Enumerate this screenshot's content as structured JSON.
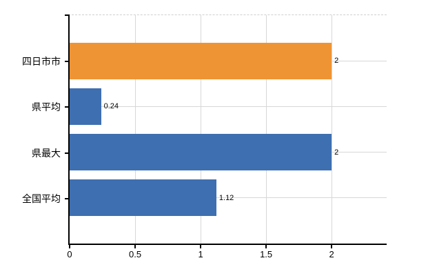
{
  "chart_data": {
    "type": "bar",
    "orientation": "horizontal",
    "title": "",
    "categories": [
      "四日市市",
      "県平均",
      "県最大",
      "全国平均"
    ],
    "values": [
      2,
      0.24,
      2,
      1.12
    ],
    "data_labels": [
      "2",
      "0.24",
      "2",
      "1.12"
    ],
    "bar_colors": [
      "#ef9434",
      "#3e6fb0",
      "#3e6fb0",
      "#3e6fb0"
    ],
    "x_ticks": [
      0,
      0.5,
      1,
      1.5,
      2
    ],
    "x_tick_labels": [
      "0",
      "0.5",
      "1",
      "1.5",
      "2"
    ],
    "xlim": [
      0,
      2.42
    ],
    "xlabel": "",
    "ylabel": "",
    "grid": true,
    "legend": false,
    "colors": {
      "highlight_bar": "#ef9434",
      "default_bar": "#3e6fb0",
      "gridline": "#d7d7d7",
      "axis": "#000000",
      "text": "#000000",
      "plot_top_border": "#cfcfcf"
    }
  }
}
